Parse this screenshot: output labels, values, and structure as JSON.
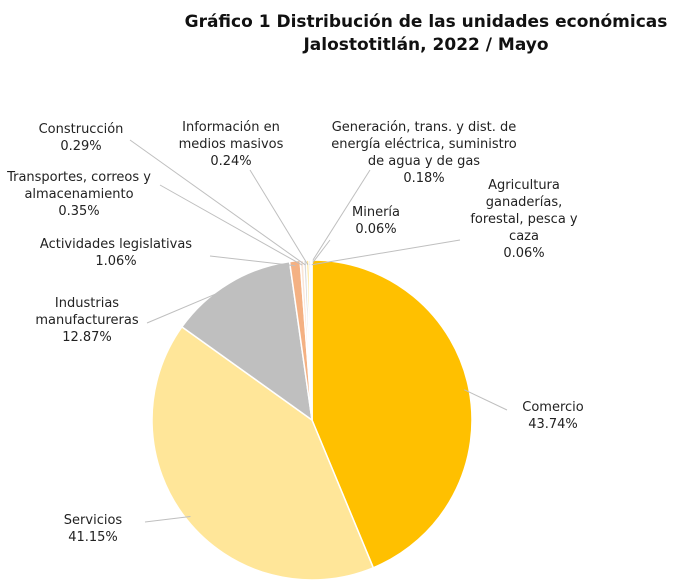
{
  "chart_data": {
    "type": "pie",
    "title": [
      "Gráfico 1 Distribución de las unidades económicas",
      "Jalostotitlán, 2022 / Mayo"
    ],
    "categories": [
      "Comercio",
      "Servicios",
      "Industrias manufactureras",
      "Actividades legislativas",
      "Transportes, correos y almacenamiento",
      "Construcción",
      "Información en medios masivos",
      "Generación, trans. y dist. de energía eléctrica, suministro de agua y de gas",
      "Minería",
      "Agricultura ganaderías, forestal, pesca y caza"
    ],
    "values": [
      43.74,
      41.15,
      12.87,
      1.06,
      0.35,
      0.29,
      0.24,
      0.18,
      0.06,
      0.06
    ],
    "value_labels": [
      "43.74%",
      "41.15%",
      "12.87%",
      "1.06%",
      "0.35%",
      "0.29%",
      "0.24%",
      "0.18%",
      "0.06%",
      "0.06%"
    ],
    "colors": [
      "#ffc000",
      "#ffe699",
      "#bfbfbf",
      "#f4b183",
      "#fbe5d6",
      "#d9d9d9",
      "#ffd966",
      "#c9c9c9",
      "#ffe699",
      "#f8cbad"
    ]
  }
}
